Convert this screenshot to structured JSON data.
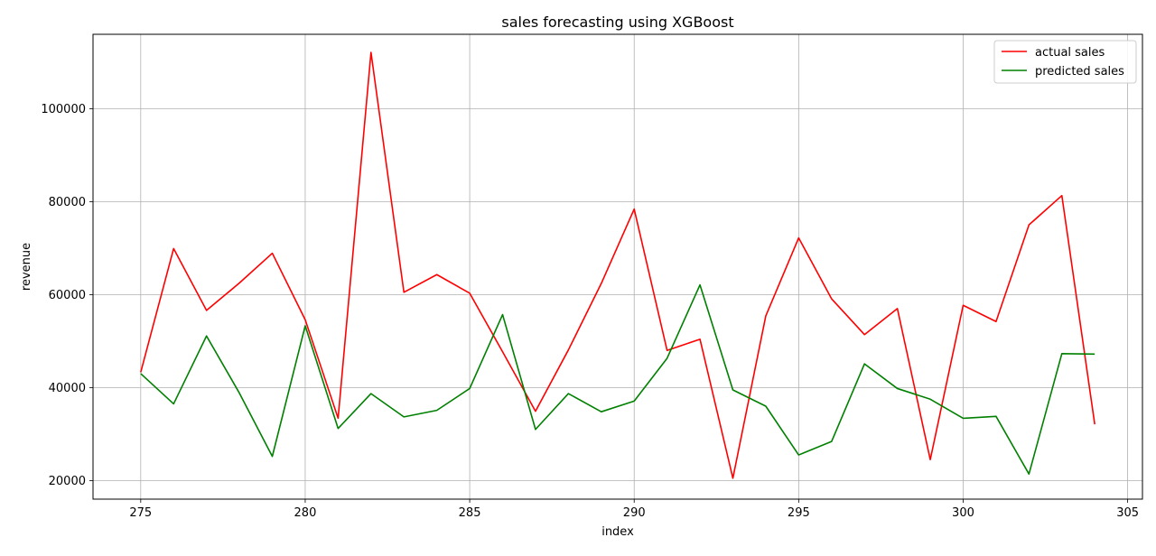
{
  "chart_data": {
    "type": "line",
    "title": "sales forecasting using XGBoost",
    "xlabel": "index",
    "ylabel": "revenue",
    "xlim": [
      273.55,
      305.45
    ],
    "ylim": [
      16000,
      116000
    ],
    "xticks": [
      275,
      280,
      285,
      290,
      295,
      300,
      305
    ],
    "yticks": [
      20000,
      40000,
      60000,
      80000,
      100000
    ],
    "grid": true,
    "legend_position": "upper right",
    "x": [
      275,
      276,
      277,
      278,
      279,
      280,
      281,
      282,
      283,
      284,
      285,
      286,
      287,
      288,
      289,
      290,
      291,
      292,
      293,
      294,
      295,
      296,
      297,
      298,
      299,
      300,
      301,
      302,
      303,
      304
    ],
    "series": [
      {
        "name": "actual sales",
        "color": "#ff0000",
        "values": [
          43300,
          69900,
          56600,
          62500,
          68900,
          54600,
          33400,
          112100,
          60500,
          64300,
          60300,
          47700,
          34900,
          48100,
          62400,
          78400,
          48000,
          50400,
          20500,
          55400,
          72200,
          59100,
          51400,
          57000,
          24500,
          57700,
          54200,
          75000,
          81300,
          32100
        ]
      },
      {
        "name": "predicted sales",
        "color": "#008000",
        "values": [
          43000,
          36500,
          51100,
          38800,
          25200,
          53300,
          31200,
          38700,
          33700,
          35100,
          39800,
          55700,
          31000,
          38700,
          34800,
          37100,
          46300,
          62100,
          39500,
          36000,
          25500,
          28400,
          45100,
          39800,
          37500,
          33400,
          33800,
          21400,
          47300,
          47200
        ]
      }
    ]
  }
}
